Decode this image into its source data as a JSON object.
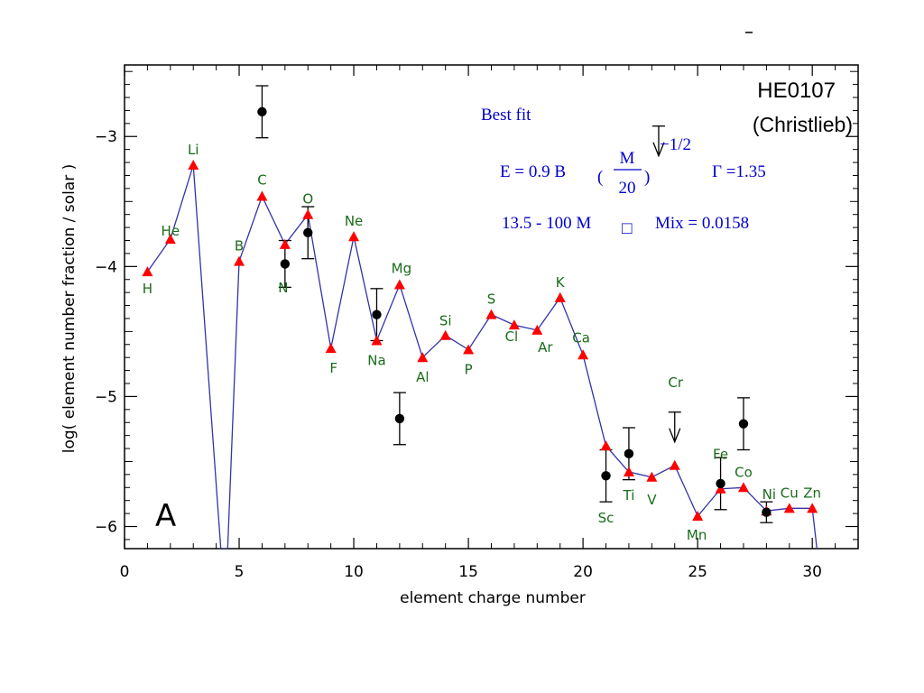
{
  "chart_data": {
    "type": "scatter",
    "xlabel": "element charge number",
    "ylabel": "log( element number fraction / solar )",
    "xlim": [
      0,
      32
    ],
    "ylim": [
      -6.17,
      -2.45
    ],
    "x_ticks": [
      0,
      5,
      10,
      15,
      20,
      25,
      30
    ],
    "x_tick_labels": [
      "0",
      "5",
      "10",
      "15",
      "20",
      "25",
      "30"
    ],
    "y_ticks": [
      -3,
      -4,
      -5,
      -6
    ],
    "y_tick_labels": [
      "−3",
      "−4",
      "−5",
      "−6"
    ],
    "colors": {
      "model_line": "#3333aa",
      "model_marker": "#ff0000",
      "observed": "#000000",
      "element_labels": "#1a6b1a",
      "annotation": "#0000cc"
    },
    "model": {
      "line_x": [
        1,
        2,
        3,
        4.2,
        4.5,
        5,
        6,
        7,
        8,
        9,
        10,
        11,
        12,
        13,
        14,
        15,
        16,
        17,
        18,
        19,
        20,
        21,
        22,
        23,
        24,
        25,
        26,
        27,
        28,
        29,
        30,
        30.2
      ],
      "line_y": [
        -4.04,
        -3.79,
        -3.22,
        -6.17,
        -6.17,
        -3.96,
        -3.46,
        -3.83,
        -3.6,
        -4.63,
        -3.77,
        -4.57,
        -4.14,
        -4.7,
        -4.53,
        -4.64,
        -4.37,
        -4.45,
        -4.49,
        -4.24,
        -4.68,
        -5.38,
        -5.58,
        -5.62,
        -5.53,
        -5.92,
        -5.71,
        -5.7,
        -5.88,
        -5.86,
        -5.86,
        -6.17
      ],
      "points": [
        {
          "x": 1,
          "y": -4.04,
          "label": "H"
        },
        {
          "x": 2,
          "y": -3.79,
          "label": "He"
        },
        {
          "x": 3,
          "y": -3.22,
          "label": "Li"
        },
        {
          "x": 5,
          "y": -3.96,
          "label": "B"
        },
        {
          "x": 6,
          "y": -3.46,
          "label": "C"
        },
        {
          "x": 7,
          "y": -3.83,
          "label": "N"
        },
        {
          "x": 8,
          "y": -3.6,
          "label": "O"
        },
        {
          "x": 9,
          "y": -4.63,
          "label": "F"
        },
        {
          "x": 10,
          "y": -3.77,
          "label": "Ne"
        },
        {
          "x": 11,
          "y": -4.57,
          "label": "Na"
        },
        {
          "x": 12,
          "y": -4.14,
          "label": "Mg"
        },
        {
          "x": 13,
          "y": -4.7,
          "label": "Al"
        },
        {
          "x": 14,
          "y": -4.53,
          "label": "Si"
        },
        {
          "x": 15,
          "y": -4.64,
          "label": "P"
        },
        {
          "x": 16,
          "y": -4.37,
          "label": "S"
        },
        {
          "x": 17,
          "y": -4.45,
          "label": "Cl"
        },
        {
          "x": 18,
          "y": -4.49,
          "label": "Ar"
        },
        {
          "x": 19,
          "y": -4.24,
          "label": "K"
        },
        {
          "x": 20,
          "y": -4.68,
          "label": "Ca"
        },
        {
          "x": 21,
          "y": -5.38,
          "label": "Sc"
        },
        {
          "x": 22,
          "y": -5.58,
          "label": "Ti"
        },
        {
          "x": 23,
          "y": -5.62,
          "label": "V"
        },
        {
          "x": 24,
          "y": -5.53,
          "label": "Cr"
        },
        {
          "x": 25,
          "y": -5.92,
          "label": "Mn"
        },
        {
          "x": 26,
          "y": -5.71,
          "label": "Fe"
        },
        {
          "x": 27,
          "y": -5.7,
          "label": "Co"
        },
        {
          "x": 28,
          "y": -5.88,
          "label": "Ni"
        },
        {
          "x": 29,
          "y": -5.86,
          "label": "Cu"
        },
        {
          "x": 30,
          "y": -5.86,
          "label": "Zn"
        }
      ]
    },
    "observed": [
      {
        "x": 6,
        "y": -2.81,
        "err": 0.2
      },
      {
        "x": 7,
        "y": -3.98,
        "err": 0.18
      },
      {
        "x": 8,
        "y": -3.74,
        "err": 0.2
      },
      {
        "x": 11,
        "y": -4.37,
        "err": 0.2
      },
      {
        "x": 12,
        "y": -5.17,
        "err": 0.2
      },
      {
        "x": 21,
        "y": -5.61,
        "err": 0.2
      },
      {
        "x": 22,
        "y": -5.44,
        "err": 0.2
      },
      {
        "x": 26,
        "y": -5.67,
        "err": 0.2
      },
      {
        "x": 27,
        "y": -5.21,
        "err": 0.2
      },
      {
        "x": 28,
        "y": -5.89,
        "err": 0.08
      }
    ],
    "upper_limits": [
      {
        "x": 24,
        "y": -5.12
      },
      {
        "x": 23.3,
        "y": -2.92
      }
    ],
    "corner_title": "HE0107",
    "corner_subtitle": "(Christlieb)",
    "panel_letter": "A",
    "annotation": {
      "best_fit": "Best fit",
      "energy_lhs": "E = 0.9 B",
      "frac_num": "M",
      "frac_den": "20",
      "exponent": "−1/2",
      "gamma": "Γ =1.35",
      "mass_range": "13.5 - 100 M",
      "mass_sub": "□",
      "mix": "Mix = 0.0158"
    }
  }
}
